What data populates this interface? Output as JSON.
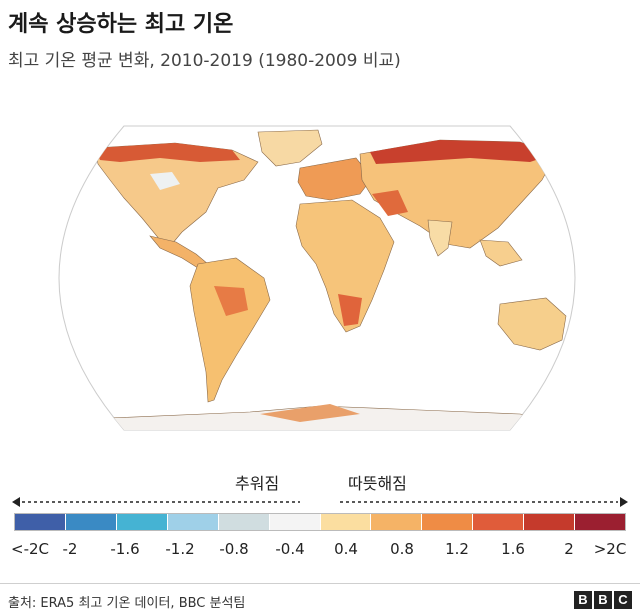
{
  "header": {
    "title": "계속 상승하는 최고 기온",
    "subtitle": "최고 기온 평균 변화, 2010-2019 (1980-2009 비교)"
  },
  "legend": {
    "cold_label": "추워짐",
    "warm_label": "따뜻해짐",
    "ticks": [
      "<-2C",
      "-2",
      "-1.6",
      "-1.2",
      "-0.8",
      "-0.4",
      "0.4",
      "0.8",
      "1.2",
      "1.6",
      "2",
      ">2C"
    ],
    "colors": [
      "#3f5fa8",
      "#3a8ac4",
      "#45b3d3",
      "#9fd0e8",
      "#d0dde0",
      "#f4f4f4",
      "#fbdea0",
      "#f5b366",
      "#ef8c45",
      "#e05c3a",
      "#c53a2c",
      "#9b1f30"
    ]
  },
  "footer": {
    "source": "출처: ERA5 최고 기온 데이터, BBC 분석팀",
    "logo_letters": [
      "B",
      "B",
      "C"
    ]
  }
}
